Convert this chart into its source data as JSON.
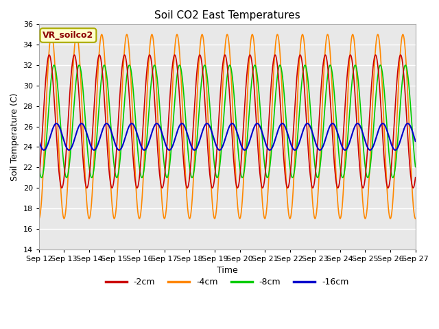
{
  "title": "Soil CO2 East Temperatures",
  "xlabel": "Time",
  "ylabel": "Soil Temperature (C)",
  "ylim": [
    14,
    36
  ],
  "yticks": [
    14,
    16,
    18,
    20,
    22,
    24,
    26,
    28,
    30,
    32,
    34,
    36
  ],
  "x_start_day": 12,
  "x_end_day": 27,
  "x_tick_days": [
    12,
    13,
    14,
    15,
    16,
    17,
    18,
    19,
    20,
    21,
    22,
    23,
    24,
    25,
    26,
    27
  ],
  "colors": {
    "-2cm": "#cc0000",
    "-4cm": "#ff8800",
    "-8cm": "#00cc00",
    "-16cm": "#0000cc"
  },
  "legend_label": "VR_soilco2",
  "plot_bg_color": "#e8e8e8",
  "grid_color": "#ffffff",
  "cm4_mean": 26.0,
  "cm4_amp": 9.0,
  "cm4_phase": -1.57,
  "cm2_mean": 26.5,
  "cm2_amp": 6.5,
  "cm2_phase": -1.0,
  "cm8_mean": 26.5,
  "cm8_amp": 5.5,
  "cm8_phase": -2.2,
  "cm16_mean": 25.0,
  "cm16_amp": 1.3,
  "cm16_phase": -2.8,
  "period": 1.0,
  "npoints": 2000
}
